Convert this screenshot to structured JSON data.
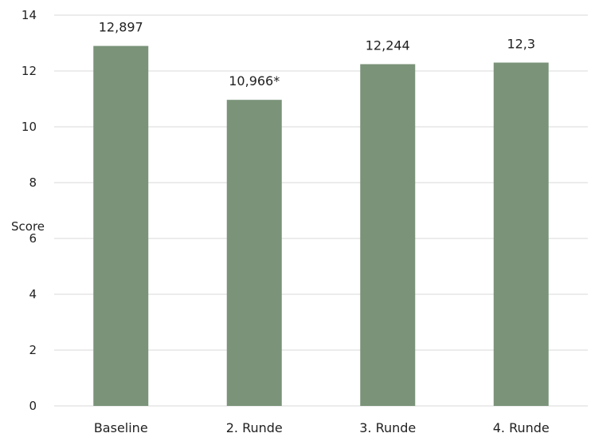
{
  "chart_data": {
    "type": "bar",
    "categories": [
      "Baseline",
      "2. Runde",
      "3. Runde",
      "4. Runde"
    ],
    "values": [
      12.897,
      10.966,
      12.244,
      12.3
    ],
    "data_labels": [
      "12,897",
      "10,966*",
      "12,244",
      "12,3"
    ],
    "title": "",
    "xlabel": "",
    "ylabel": "Score",
    "ylim": [
      0,
      14
    ],
    "yticks": [
      0,
      2,
      4,
      6,
      8,
      10,
      12,
      14
    ],
    "grid": true,
    "legend": "none",
    "colors": {
      "bar": "#7a9379",
      "grid": "#d9d9d9",
      "text": "#222222"
    }
  }
}
